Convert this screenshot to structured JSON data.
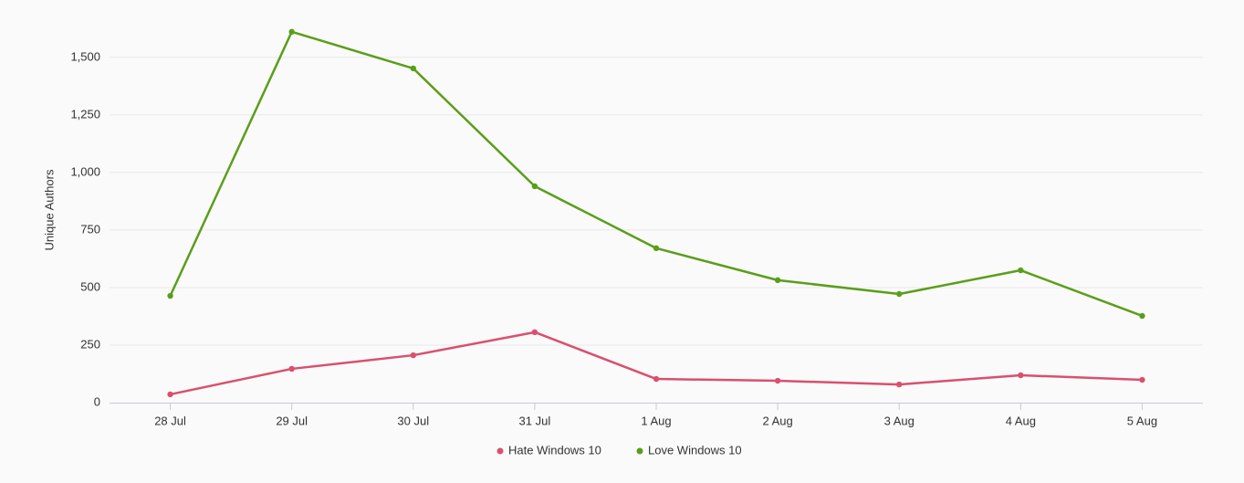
{
  "chart_data": {
    "type": "line",
    "y_label": "Unique Authors",
    "categories": [
      "28 Jul",
      "29 Jul",
      "30 Jul",
      "31 Jul",
      "1 Aug",
      "2 Aug",
      "3 Aug",
      "4 Aug",
      "5 Aug"
    ],
    "series": [
      {
        "name": "Hate Windows 10",
        "color": "#d9506d",
        "values": [
          36,
          147,
          206,
          306,
          103,
          95,
          79,
          119,
          99
        ]
      },
      {
        "name": "Love Windows 10",
        "color": "#5a9e1a",
        "values": [
          464,
          1611,
          1452,
          940,
          671,
          532,
          472,
          575,
          377
        ]
      }
    ],
    "ylim": [
      0,
      1650
    ],
    "yticks": [
      0,
      250,
      500,
      750,
      {
        "value": 1000,
        "label": "1,000"
      },
      {
        "value": 1250,
        "label": "1,250"
      },
      {
        "value": 1500,
        "label": "1,500"
      }
    ],
    "grid": true,
    "legend": "bottom"
  }
}
